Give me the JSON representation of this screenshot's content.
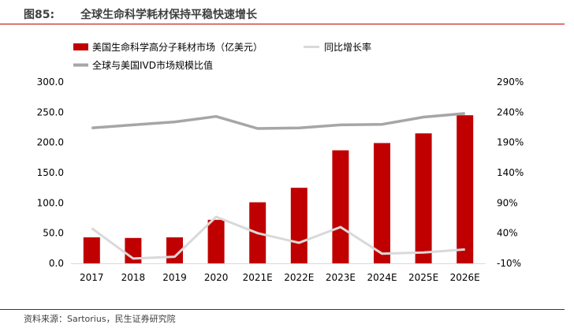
{
  "figure": {
    "number": "图85:",
    "title": "全球生命科学耗材保持平稳快速增长",
    "source": "资料来源：Sartorius，民生证券研究院"
  },
  "colors": {
    "bar": "#c00000",
    "yoy_line": "#d9d9d9",
    "share_line": "#a6a6a6",
    "frame_accent": "#c00000"
  },
  "chart_data": {
    "type": "bar",
    "categories": [
      "2017",
      "2018",
      "2019",
      "2020",
      "2021E",
      "2022E",
      "2023E",
      "2024E",
      "2025E",
      "2026E"
    ],
    "series": [
      {
        "name": "美国生命科学高分子耗材市场（亿美元）",
        "type": "bar",
        "axis": "left",
        "values": [
          43,
          42,
          43,
          72,
          101,
          125,
          187,
          199,
          215,
          245
        ]
      },
      {
        "name": "同比增长率",
        "type": "line",
        "axis": "right",
        "values": [
          48,
          -2,
          1,
          67,
          40,
          24,
          50,
          6,
          8,
          13
        ]
      },
      {
        "name": "全球与美国IVD市场规模比值",
        "type": "line",
        "axis": "right",
        "values": [
          214,
          219,
          224,
          233,
          213,
          214,
          219,
          220,
          232,
          238
        ]
      }
    ],
    "left_axis": {
      "ylim": [
        0,
        300
      ],
      "ticks": [
        "0.0",
        "50.0",
        "100.0",
        "150.0",
        "200.0",
        "250.0",
        "300.0"
      ]
    },
    "right_axis": {
      "ylim": [
        -10,
        290
      ],
      "ticks": [
        "-10%",
        "40%",
        "90%",
        "140%",
        "190%",
        "240%",
        "290%"
      ]
    },
    "legend_position": "top",
    "grid": false
  }
}
